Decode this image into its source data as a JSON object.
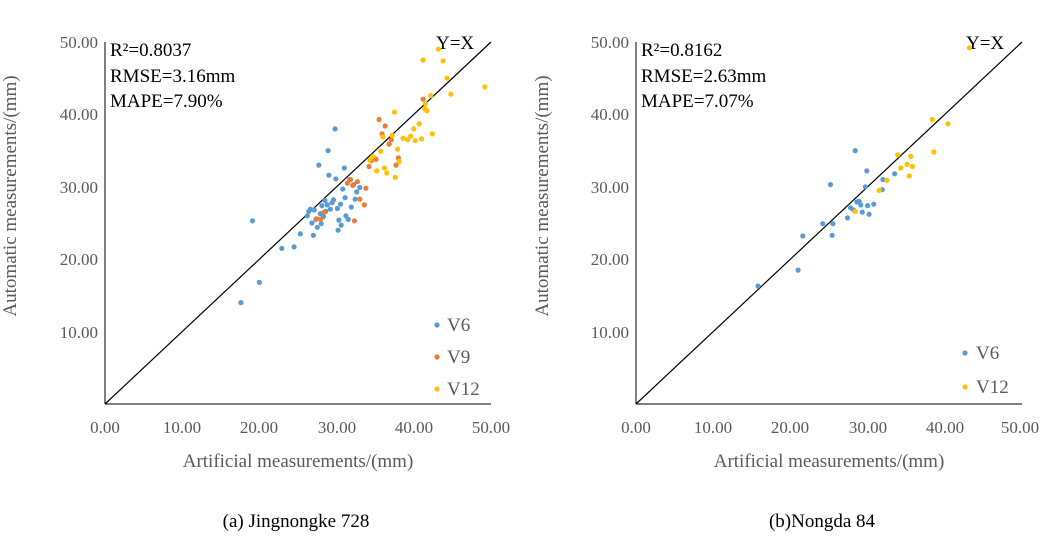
{
  "series_colors": {
    "V6": "#5b9bd5",
    "V9": "#ed7d31",
    "V12": "#ffc000"
  },
  "chart_data": [
    {
      "type": "scatter",
      "caption": "(a) Jingnongke 728",
      "xlabel": "Artificial measurements/(mm)",
      "ylabel": "Automatic measurements/(mm)",
      "xlim": [
        0,
        50
      ],
      "ylim": [
        0,
        50
      ],
      "xticks": [
        "0.00",
        "10.00",
        "20.00",
        "30.00",
        "40.00",
        "50.00"
      ],
      "yticks": [
        "10.00",
        "20.00",
        "30.00",
        "40.00",
        "50.00"
      ],
      "reference_line_label": "Y=X",
      "stats": [
        "R²=0.8037",
        "RMSE=3.16mm",
        "MAPE=7.90%"
      ],
      "legend": [
        "V6",
        "V9",
        "V12"
      ],
      "series": [
        {
          "name": "V6",
          "points": [
            [
              17.6,
              14.0
            ],
            [
              19.1,
              25.3
            ],
            [
              20.0,
              16.8
            ],
            [
              22.9,
              21.5
            ],
            [
              24.5,
              21.7
            ],
            [
              25.3,
              23.5
            ],
            [
              26.2,
              26.0
            ],
            [
              26.6,
              26.9
            ],
            [
              26.8,
              25.0
            ],
            [
              27.0,
              23.3
            ],
            [
              27.3,
              25.5
            ],
            [
              27.5,
              24.4
            ],
            [
              27.7,
              33.0
            ],
            [
              27.9,
              26.3
            ],
            [
              28.1,
              27.4
            ],
            [
              28.0,
              24.9
            ],
            [
              28.3,
              25.9
            ],
            [
              28.5,
              28.1
            ],
            [
              28.6,
              26.6
            ],
            [
              28.9,
              35.0
            ],
            [
              29.0,
              31.6
            ],
            [
              29.2,
              26.9
            ],
            [
              29.4,
              27.8
            ],
            [
              29.6,
              28.2
            ],
            [
              29.8,
              38.0
            ],
            [
              29.9,
              31.1
            ],
            [
              30.1,
              27.0
            ],
            [
              30.2,
              24.0
            ],
            [
              30.3,
              25.4
            ],
            [
              30.5,
              27.6
            ],
            [
              30.8,
              29.7
            ],
            [
              31.0,
              32.6
            ],
            [
              31.1,
              28.5
            ],
            [
              31.2,
              26.0
            ],
            [
              31.5,
              25.5
            ],
            [
              31.7,
              31.0
            ],
            [
              31.9,
              27.2
            ],
            [
              32.2,
              30.3
            ],
            [
              32.6,
              29.3
            ],
            [
              33.0,
              29.9
            ],
            [
              26.4,
              26.6
            ],
            [
              27.1,
              26.8
            ],
            [
              28.8,
              27.5
            ],
            [
              30.6,
              24.7
            ],
            [
              32.4,
              28.3
            ]
          ]
        },
        {
          "name": "V9",
          "points": [
            [
              27.4,
              25.6
            ],
            [
              28.4,
              26.5
            ],
            [
              31.8,
              31.0
            ],
            [
              32.1,
              30.2
            ],
            [
              32.3,
              25.3
            ],
            [
              32.7,
              30.7
            ],
            [
              33.0,
              28.3
            ],
            [
              33.6,
              27.5
            ],
            [
              33.8,
              29.8
            ],
            [
              34.2,
              32.8
            ],
            [
              34.5,
              33.6
            ],
            [
              35.1,
              33.8
            ],
            [
              35.5,
              39.3
            ],
            [
              35.9,
              37.3
            ],
            [
              36.3,
              38.4
            ],
            [
              36.8,
              35.9
            ],
            [
              37.1,
              36.5
            ],
            [
              37.7,
              33.0
            ],
            [
              38.0,
              34.0
            ],
            [
              41.2,
              42.1
            ],
            [
              27.9,
              25.5
            ],
            [
              31.4,
              30.5
            ]
          ]
        },
        {
          "name": "V12",
          "points": [
            [
              34.3,
              33.7
            ],
            [
              34.7,
              34.2
            ],
            [
              35.2,
              32.2
            ],
            [
              35.7,
              34.9
            ],
            [
              36.0,
              36.9
            ],
            [
              36.2,
              32.6
            ],
            [
              36.5,
              31.9
            ],
            [
              37.2,
              37.1
            ],
            [
              37.5,
              40.3
            ],
            [
              37.6,
              31.3
            ],
            [
              37.9,
              35.2
            ],
            [
              38.1,
              33.5
            ],
            [
              38.6,
              36.7
            ],
            [
              39.2,
              36.5
            ],
            [
              39.6,
              37.0
            ],
            [
              40.0,
              38.0
            ],
            [
              40.2,
              36.4
            ],
            [
              40.7,
              38.7
            ],
            [
              41.0,
              36.6
            ],
            [
              41.2,
              47.5
            ],
            [
              41.4,
              40.8
            ],
            [
              41.5,
              41.5
            ],
            [
              41.7,
              40.5
            ],
            [
              42.2,
              42.6
            ],
            [
              42.4,
              37.3
            ],
            [
              43.2,
              49.0
            ],
            [
              43.8,
              47.4
            ],
            [
              44.3,
              45.0
            ],
            [
              44.8,
              42.8
            ],
            [
              49.2,
              43.8
            ]
          ]
        }
      ]
    },
    {
      "type": "scatter",
      "caption": "(b)Nongda 84",
      "xlabel": "Artificial measurements/(mm)",
      "ylabel": "Automatic measurements/(mm)",
      "xlim": [
        0,
        50
      ],
      "ylim": [
        0,
        50
      ],
      "xticks": [
        "0.00",
        "10.00",
        "20.00",
        "30.00",
        "40.00",
        "50.00"
      ],
      "yticks": [
        "10.00",
        "20.00",
        "30.00",
        "40.00",
        "50.00"
      ],
      "reference_line_label": "Y=X",
      "stats": [
        "R²=0.8162",
        "RMSE=2.63mm",
        "MAPE=7.07%"
      ],
      "legend": [
        "V6",
        "V12"
      ],
      "series": [
        {
          "name": "V6",
          "points": [
            [
              15.8,
              16.3
            ],
            [
              21.0,
              18.5
            ],
            [
              21.6,
              23.2
            ],
            [
              24.2,
              24.9
            ],
            [
              25.2,
              30.3
            ],
            [
              25.4,
              23.3
            ],
            [
              25.5,
              24.9
            ],
            [
              27.4,
              25.7
            ],
            [
              27.8,
              27.1
            ],
            [
              28.2,
              26.8
            ],
            [
              28.4,
              35.0
            ],
            [
              28.6,
              27.9
            ],
            [
              28.9,
              28.0
            ],
            [
              29.1,
              27.5
            ],
            [
              29.3,
              26.5
            ],
            [
              29.7,
              30.0
            ],
            [
              29.9,
              32.2
            ],
            [
              30.0,
              27.4
            ],
            [
              30.2,
              26.2
            ],
            [
              30.8,
              27.6
            ],
            [
              31.9,
              29.6
            ],
            [
              32.0,
              31.0
            ],
            [
              33.5,
              31.8
            ]
          ]
        },
        {
          "name": "V12",
          "points": [
            [
              28.4,
              26.6
            ],
            [
              31.5,
              29.5
            ],
            [
              32.5,
              30.9
            ],
            [
              33.9,
              34.4
            ],
            [
              34.3,
              32.6
            ],
            [
              35.1,
              33.1
            ],
            [
              35.4,
              31.5
            ],
            [
              35.6,
              34.2
            ],
            [
              35.8,
              32.8
            ],
            [
              38.4,
              39.3
            ],
            [
              38.6,
              34.8
            ],
            [
              40.4,
              38.7
            ],
            [
              43.2,
              49.2
            ]
          ]
        }
      ]
    }
  ]
}
